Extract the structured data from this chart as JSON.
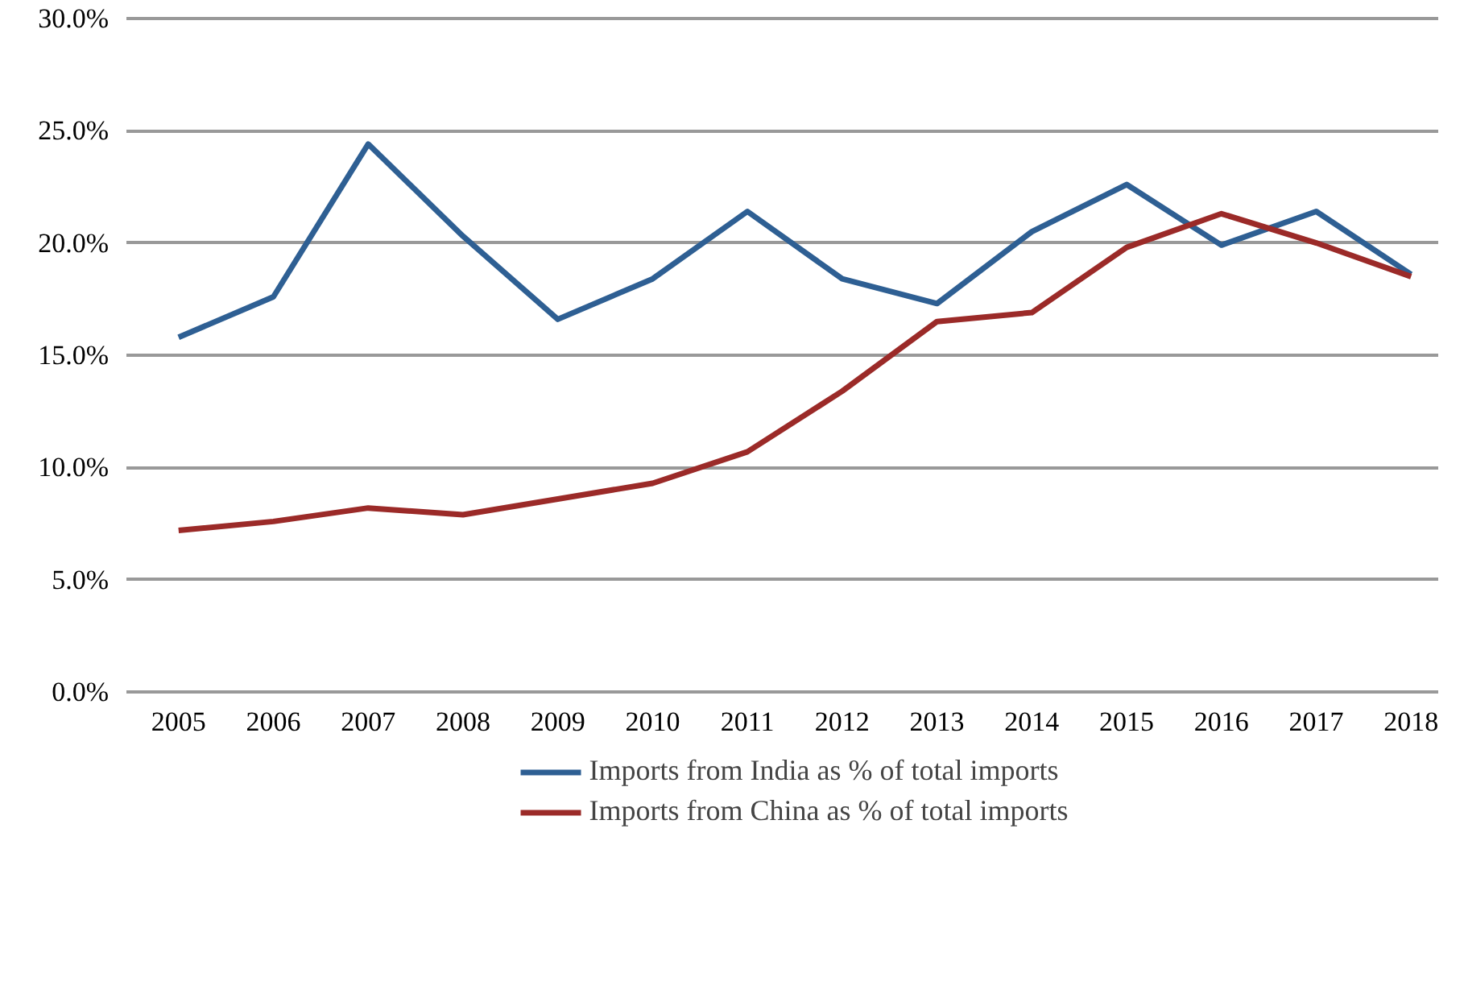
{
  "chart_data": {
    "type": "line",
    "categories": [
      "2005",
      "2006",
      "2007",
      "2008",
      "2009",
      "2010",
      "2011",
      "2012",
      "2013",
      "2014",
      "2015",
      "2016",
      "2017",
      "2018"
    ],
    "series": [
      {
        "name": "Imports from India as % of total imports",
        "color": "#2e5f93",
        "values": [
          15.8,
          17.6,
          24.4,
          20.3,
          16.6,
          18.4,
          21.4,
          18.4,
          17.3,
          20.5,
          22.6,
          19.9,
          21.4,
          18.6
        ]
      },
      {
        "name": "Imports from China as % of total imports",
        "color": "#9b2a28",
        "values": [
          7.2,
          7.6,
          8.2,
          7.9,
          8.6,
          9.3,
          10.7,
          13.4,
          16.5,
          16.9,
          19.8,
          21.3,
          20.0,
          18.5
        ]
      }
    ],
    "ylim": [
      0,
      30
    ],
    "yticks": [
      {
        "value": 0,
        "label": "0.0%"
      },
      {
        "value": 5,
        "label": "5.0%"
      },
      {
        "value": 10,
        "label": "10.0%"
      },
      {
        "value": 15,
        "label": "15.0%"
      },
      {
        "value": 20,
        "label": "20.0%"
      },
      {
        "value": 25,
        "label": "25.0%"
      },
      {
        "value": 30,
        "label": "30.0%"
      }
    ],
    "grid": "y",
    "legend": "bottom",
    "marker": "none",
    "line_style": "solid"
  }
}
